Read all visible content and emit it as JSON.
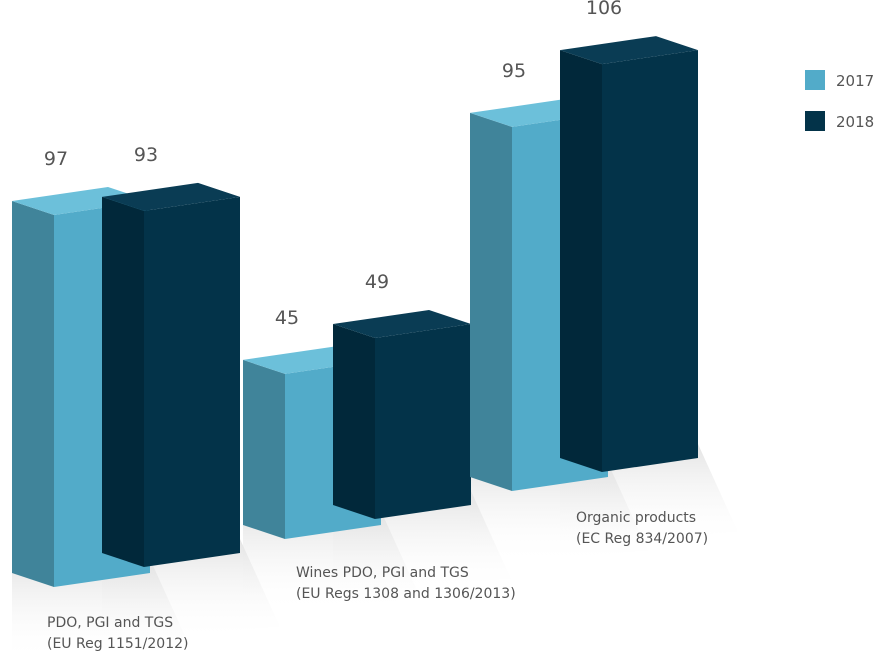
{
  "chart_data": {
    "type": "bar",
    "title": "",
    "xlabel": "",
    "ylabel": "",
    "categories": [
      [
        "PDO, PGI and TGS",
        "(EU Reg 1151/2012)"
      ],
      [
        "Wines PDO, PGI and TGS",
        "(EU Regs 1308 and 1306/2013)"
      ],
      [
        "Organic products",
        "(EC Reg 834/2007)"
      ]
    ],
    "series": [
      {
        "name": "2017",
        "values": [
          97,
          45,
          95
        ]
      },
      {
        "name": "2018",
        "values": [
          93,
          49,
          106
        ]
      }
    ],
    "value_labels": [
      [
        "97",
        "45",
        "95"
      ],
      [
        "93",
        "49",
        "106"
      ]
    ],
    "legend_position": "top-right",
    "style": "3d-bars",
    "colors": {
      "2017_front": "#52abc9",
      "2017_side": "#40849a",
      "2017_top": "#6cc0da",
      "2018_front": "#033349",
      "2018_side": "#01283a",
      "2018_top": "#0a3c54",
      "label": "#555555"
    }
  }
}
